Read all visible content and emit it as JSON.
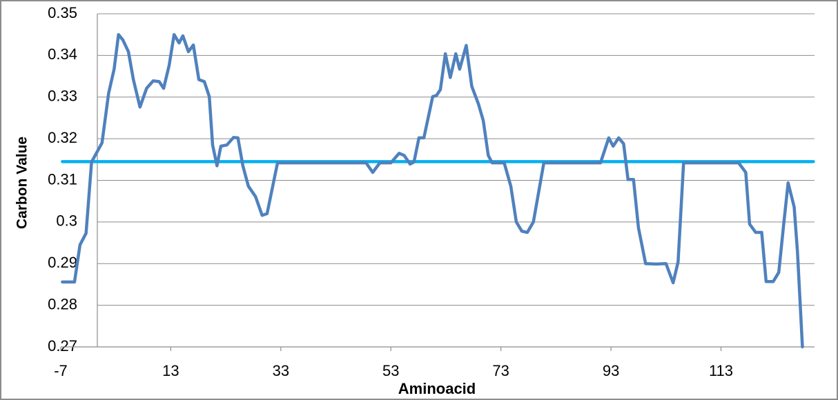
{
  "chart_data": {
    "type": "line",
    "x_label": "Aminoacid",
    "y_label": "Carbon Value",
    "xlim": [
      -7,
      130
    ],
    "xticks": [
      -7,
      13,
      33,
      53,
      73,
      93,
      113
    ],
    "ylim": [
      0.27,
      0.35
    ],
    "yticks": [
      0.27,
      0.28,
      0.29,
      0.3,
      0.31,
      0.32,
      0.33,
      0.34,
      0.35
    ],
    "grid": true,
    "series": [
      {
        "color": "#4f81bd",
        "x": [
          -6.7,
          -4.5,
          -3.5,
          -2.4,
          -1.4,
          0.5,
          1.7,
          2.7,
          3.5,
          4.3,
          5.3,
          6.2,
          7.4,
          8.6,
          9.8,
          10.9,
          11.7,
          12.7,
          13.6,
          14.5,
          15.2,
          16.2,
          17.1,
          18.1,
          19.1,
          20.0,
          20.6,
          21.4,
          22.1,
          23.2,
          24.4,
          25.2,
          26.1,
          27.1,
          28.4,
          29.6,
          30.5,
          32.4,
          48.5,
          49.7,
          51.0,
          53.0,
          54.5,
          55.4,
          56.5,
          57.2,
          58.1,
          59.0,
          60.6,
          61.3,
          62.0,
          62.9,
          63.8,
          64.8,
          65.5,
          66.7,
          67.7,
          68.9,
          69.8,
          70.7,
          71.4,
          73.6,
          74.8,
          75.8,
          76.8,
          77.8,
          78.9,
          80.8,
          91.1,
          92.6,
          93.4,
          94.4,
          95.3,
          96.1,
          97.1,
          98.0,
          99.3,
          101.2,
          103.0,
          104.3,
          105.2,
          106.2,
          116.2,
          117.5,
          118.2,
          119.3,
          120.4,
          121.2,
          122.5,
          123.5,
          124.4,
          125.2,
          126.3,
          126.9,
          127.8
        ],
        "values": [
          0.2856,
          0.2856,
          0.2945,
          0.2973,
          0.3144,
          0.319,
          0.3309,
          0.3367,
          0.345,
          0.3437,
          0.3409,
          0.3342,
          0.3276,
          0.3321,
          0.3339,
          0.3337,
          0.3321,
          0.3376,
          0.345,
          0.343,
          0.3447,
          0.3409,
          0.3425,
          0.3342,
          0.3337,
          0.3301,
          0.3185,
          0.3135,
          0.3182,
          0.3185,
          0.3203,
          0.3202,
          0.3135,
          0.3086,
          0.3061,
          0.3016,
          0.302,
          0.3142,
          0.3142,
          0.3119,
          0.3142,
          0.3142,
          0.3165,
          0.316,
          0.3139,
          0.3144,
          0.3202,
          0.3202,
          0.3301,
          0.3304,
          0.3318,
          0.3404,
          0.3347,
          0.3404,
          0.3367,
          0.3424,
          0.3326,
          0.3284,
          0.3243,
          0.316,
          0.3142,
          0.3142,
          0.3086,
          0.3,
          0.2978,
          0.2975,
          0.3,
          0.3142,
          0.3142,
          0.3202,
          0.3182,
          0.3202,
          0.3188,
          0.3102,
          0.3102,
          0.2986,
          0.29,
          0.2899,
          0.29,
          0.2854,
          0.2904,
          0.3142,
          0.3142,
          0.3119,
          0.2995,
          0.2975,
          0.2975,
          0.2857,
          0.2857,
          0.2879,
          0.2995,
          0.3094,
          0.3036,
          0.2928,
          0.27
        ]
      },
      {
        "color": "#00b0f0",
        "x": [
          -6.7,
          129.8
        ],
        "values": [
          0.3145,
          0.3145
        ]
      }
    ]
  }
}
